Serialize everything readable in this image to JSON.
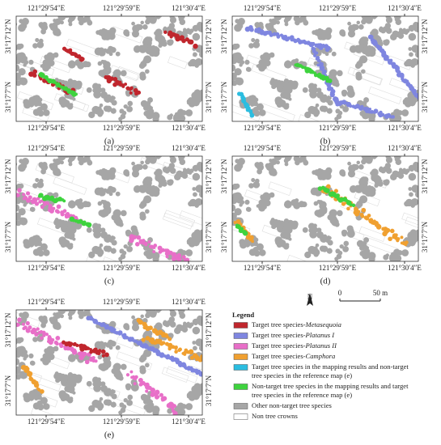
{
  "panels": [
    {
      "label": "(a)",
      "top_ticks": [
        "121°29′54″E",
        "121°29′59″E",
        "121°30′4″E"
      ],
      "bottom_ticks": [
        "121°29′54″E",
        "121°29′59″E",
        "121°30′4″E"
      ],
      "left_ticks": [
        "31°17′12″N",
        "31°17′7″N"
      ],
      "right_ticks": [
        "31°17′12″N",
        "31°17′7″N"
      ]
    },
    {
      "label": "(b)",
      "top_ticks": [
        "121°29′54″E",
        "121°29′59″E",
        "121°30′4″E"
      ],
      "bottom_ticks": [
        "121°29′54″E",
        "121°29′59″E",
        "121°30′4″E"
      ],
      "left_ticks": [
        "31°17′12″N",
        "31°17′7″N"
      ],
      "right_ticks": [
        "31°17′12″N",
        "31°17′7″N"
      ]
    },
    {
      "label": "(c)",
      "top_ticks": [
        "121°29′54″E",
        "121°29′59″E",
        "121°30′4″E"
      ],
      "bottom_ticks": [
        "121°29′54″E",
        "121°29′59″E",
        "121°30′4″E"
      ],
      "left_ticks": [
        "31°17′12″N",
        "31°17′7″N"
      ],
      "right_ticks": [
        "31°17′12″N",
        "31°17′7″N"
      ]
    },
    {
      "label": "(d)",
      "top_ticks": [
        "121°29′54″E",
        "121°29′59″E",
        "121°30′4″E"
      ],
      "bottom_ticks": [
        "121°29′54″E",
        "121°29′59″E",
        "121°30′4″E"
      ],
      "left_ticks": [
        "31°17′12″N",
        "31°17′7″N"
      ],
      "right_ticks": [
        "31°17′12″N",
        "31°17′7″N"
      ]
    },
    {
      "label": "(e)",
      "top_ticks": [
        "121°29′54″E",
        "121°29′59″E",
        "121°30′4″E"
      ],
      "bottom_ticks": [
        "121°29′54″E",
        "121°29′59″E",
        "121°30′4″E"
      ],
      "left_ticks": [
        "31°17′12″N",
        "31°17′7″N"
      ],
      "right_ticks": [
        "31°17′12″N",
        "31°17′7″N"
      ]
    }
  ],
  "north": "N",
  "scale": {
    "zero": "0",
    "distance": "50 m"
  },
  "legend": {
    "title": "Legend",
    "items": [
      {
        "lines": [
          {
            "text": "Target tree species-",
            "italic": "Metasequoia"
          }
        ],
        "color": "#c0262d"
      },
      {
        "lines": [
          {
            "text": "Target tree species-",
            "italic": "Platanus I"
          }
        ],
        "color": "#7f86e0"
      },
      {
        "lines": [
          {
            "text": "Target tree species-",
            "italic": "Platanus II"
          }
        ],
        "color": "#e86fc8"
      },
      {
        "lines": [
          {
            "text": "Target tree species-",
            "italic": "Camphora"
          }
        ],
        "color": "#f0a030"
      },
      {
        "lines": [
          {
            "text": "Target tree species in the mapping results and non-target"
          },
          {
            "text": "tree species in the reference map (e)"
          }
        ],
        "color": "#2bbde0"
      },
      {
        "lines": [
          {
            "text": "Non-target tree species in the mapping results and target"
          },
          {
            "text": "tree species in the reference map (e)"
          }
        ],
        "color": "#3ed33e"
      },
      {
        "lines": [
          {
            "text": "Other non-target tree species"
          }
        ],
        "color": "#a6a6a6"
      },
      {
        "lines": [
          {
            "text": "Non tree crowns"
          }
        ],
        "color": "#ffffff"
      }
    ]
  }
}
